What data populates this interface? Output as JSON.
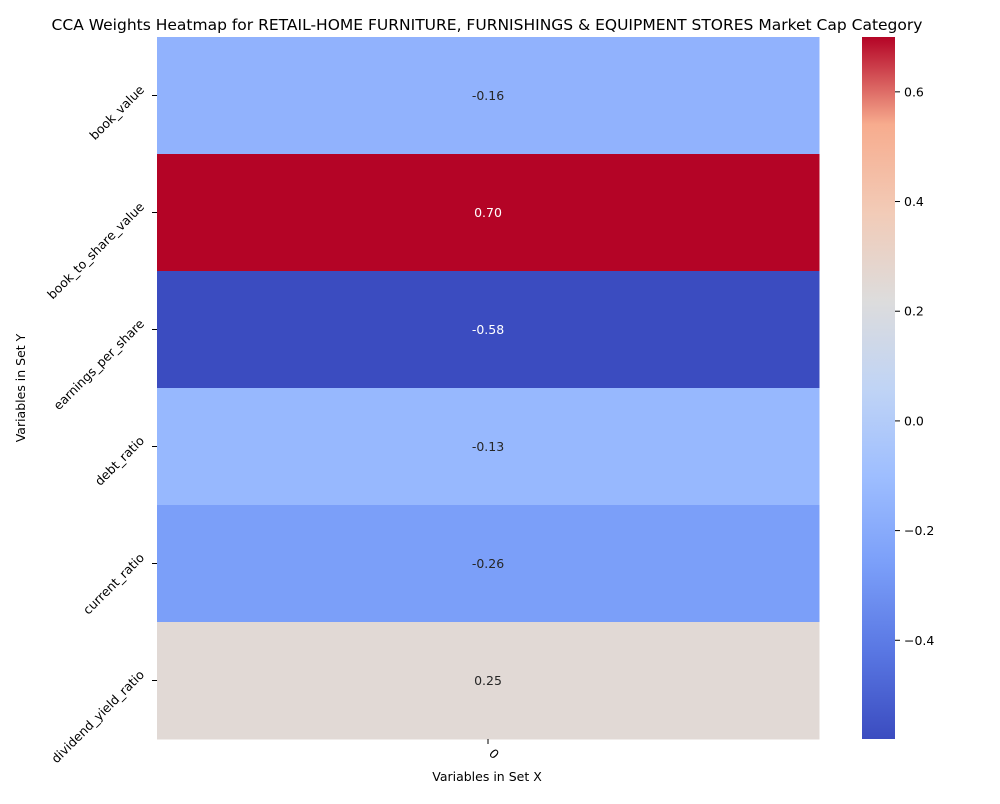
{
  "chart_data": {
    "type": "heatmap",
    "title": "CCA Weights Heatmap for RETAIL-HOME FURNITURE, FURNISHINGS & EQUIPMENT STORES Market Cap Category",
    "xlabel": "Variables in Set X",
    "ylabel": "Variables in Set Y",
    "x_categories": [
      "0"
    ],
    "y_categories": [
      "book_value",
      "book_to_share_value",
      "earnings_per_share",
      "debt_ratio",
      "current_ratio",
      "dividend_yield_ratio"
    ],
    "values": [
      [
        -0.16
      ],
      [
        0.7
      ],
      [
        -0.58
      ],
      [
        -0.13
      ],
      [
        -0.26
      ],
      [
        0.25
      ]
    ],
    "value_labels": [
      "-0.16",
      "0.70",
      "-0.58",
      "-0.13",
      "-0.26",
      "0.25"
    ],
    "colormap": "coolwarm",
    "colorbar": {
      "range": [
        -0.58,
        0.7
      ],
      "ticks": [
        0.6,
        0.4,
        0.2,
        0.0,
        -0.2,
        -0.4
      ],
      "tick_labels": [
        "0.6",
        "0.4",
        "0.2",
        "0.0",
        "−0.2",
        "−0.4"
      ]
    }
  }
}
